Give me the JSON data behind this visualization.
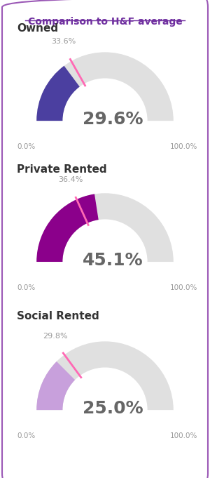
{
  "title": "Comparison to H&F average",
  "title_color": "#7030A0",
  "background_color": "#ffffff",
  "border_color": "#9B59B6",
  "charts": [
    {
      "label": "Owned",
      "value": 29.6,
      "avg": 33.6,
      "color": "#4B3FA0",
      "avg_color": "#FF69B4",
      "bg_color": "#E0E0E0"
    },
    {
      "label": "Private Rented",
      "value": 45.1,
      "avg": 36.4,
      "color": "#8B008B",
      "avg_color": "#FF69B4",
      "bg_color": "#E0E0E0"
    },
    {
      "label": "Social Rented",
      "value": 25.0,
      "avg": 29.8,
      "color": "#C8A0DC",
      "avg_color": "#FF69B4",
      "bg_color": "#E0E0E0"
    }
  ],
  "label_fontsize": 11,
  "value_fontsize": 18,
  "tick_fontsize": 7.5,
  "avg_fontsize": 8
}
